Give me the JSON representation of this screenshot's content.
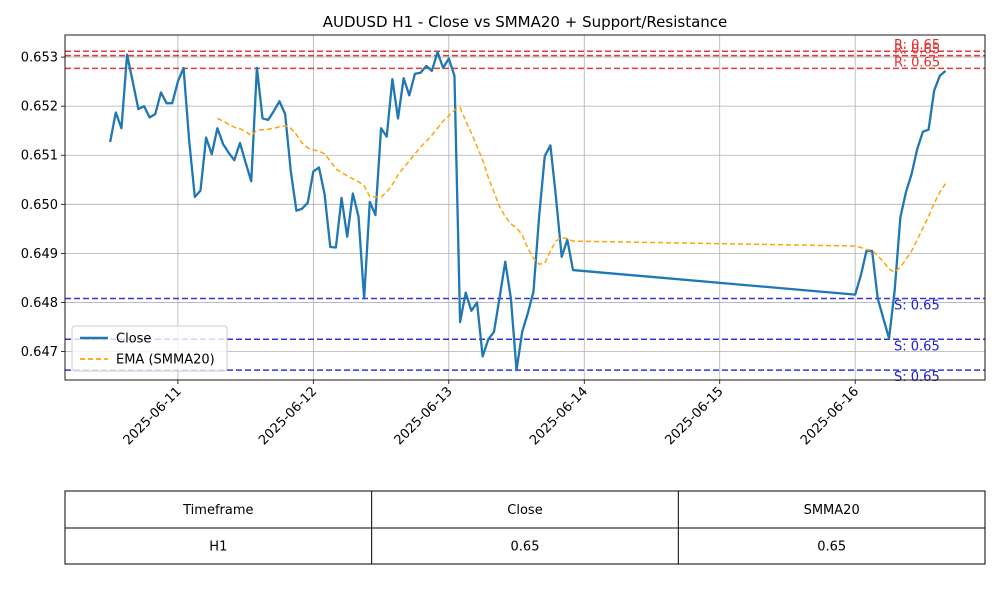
{
  "chart_data": {
    "type": "line",
    "title": "AUDUSD H1 - Close vs SMMA20 + Support/Resistance",
    "xlabel": "",
    "ylabel": "",
    "x_ticks": [
      "2025-06-11",
      "2025-06-12",
      "2025-06-13",
      "2025-06-14",
      "2025-06-15",
      "2025-06-16"
    ],
    "y_ticks": [
      "0.647",
      "0.648",
      "0.649",
      "0.650",
      "0.651",
      "0.652",
      "0.653"
    ],
    "xlim": [
      "2025-06-10T04:00",
      "2025-06-16T23:00"
    ],
    "ylim": [
      0.64642,
      0.65345
    ],
    "grid": true,
    "legend_position": "center-left",
    "colors": {
      "close": "#1f77b4",
      "smma": "#ffa500",
      "resistance": "#e03030",
      "support": "#2020d0"
    },
    "series": [
      {
        "name": "Close",
        "style": "solid",
        "points": [
          [
            "2025-06-10T12:00",
            0.65127
          ],
          [
            "2025-06-10T13:00",
            0.65187
          ],
          [
            "2025-06-10T14:00",
            0.65155
          ],
          [
            "2025-06-10T15:00",
            0.65305
          ],
          [
            "2025-06-10T16:00",
            0.6525
          ],
          [
            "2025-06-10T17:00",
            0.65194
          ],
          [
            "2025-06-10T18:00",
            0.652
          ],
          [
            "2025-06-10T19:00",
            0.65177
          ],
          [
            "2025-06-10T20:00",
            0.65184
          ],
          [
            "2025-06-10T21:00",
            0.65228
          ],
          [
            "2025-06-10T22:00",
            0.65206
          ],
          [
            "2025-06-10T23:00",
            0.65206
          ],
          [
            "2025-06-11T00:00",
            0.6525
          ],
          [
            "2025-06-11T01:00",
            0.65278
          ],
          [
            "2025-06-11T02:00",
            0.6513
          ],
          [
            "2025-06-11T03:00",
            0.65015
          ],
          [
            "2025-06-11T04:00",
            0.65028
          ],
          [
            "2025-06-11T05:00",
            0.65136
          ],
          [
            "2025-06-11T06:00",
            0.65102
          ],
          [
            "2025-06-11T07:00",
            0.65155
          ],
          [
            "2025-06-11T08:00",
            0.65123
          ],
          [
            "2025-06-11T09:00",
            0.65105
          ],
          [
            "2025-06-11T10:00",
            0.6509
          ],
          [
            "2025-06-11T11:00",
            0.65125
          ],
          [
            "2025-06-11T12:00",
            0.65085
          ],
          [
            "2025-06-11T13:00",
            0.65047
          ],
          [
            "2025-06-11T14:00",
            0.65278
          ],
          [
            "2025-06-11T15:00",
            0.65175
          ],
          [
            "2025-06-11T16:00",
            0.65172
          ],
          [
            "2025-06-11T17:00",
            0.6519
          ],
          [
            "2025-06-11T18:00",
            0.6521
          ],
          [
            "2025-06-11T19:00",
            0.65184
          ],
          [
            "2025-06-11T20:00",
            0.65068
          ],
          [
            "2025-06-11T21:00",
            0.64987
          ],
          [
            "2025-06-11T22:00",
            0.64991
          ],
          [
            "2025-06-11T23:00",
            0.65003
          ],
          [
            "2025-06-12T00:00",
            0.65067
          ],
          [
            "2025-06-12T01:00",
            0.65075
          ],
          [
            "2025-06-12T02:00",
            0.6502
          ],
          [
            "2025-06-12T03:00",
            0.64913
          ],
          [
            "2025-06-12T04:00",
            0.64912
          ],
          [
            "2025-06-12T05:00",
            0.65013
          ],
          [
            "2025-06-12T06:00",
            0.64934
          ],
          [
            "2025-06-12T07:00",
            0.65022
          ],
          [
            "2025-06-12T08:00",
            0.64975
          ],
          [
            "2025-06-12T09:00",
            0.64808
          ],
          [
            "2025-06-12T10:00",
            0.65005
          ],
          [
            "2025-06-12T11:00",
            0.64978
          ],
          [
            "2025-06-12T12:00",
            0.65155
          ],
          [
            "2025-06-12T13:00",
            0.65138
          ],
          [
            "2025-06-12T14:00",
            0.65255
          ],
          [
            "2025-06-12T15:00",
            0.65175
          ],
          [
            "2025-06-12T16:00",
            0.65257
          ],
          [
            "2025-06-12T17:00",
            0.65222
          ],
          [
            "2025-06-12T18:00",
            0.65266
          ],
          [
            "2025-06-12T19:00",
            0.65268
          ],
          [
            "2025-06-12T20:00",
            0.65282
          ],
          [
            "2025-06-12T21:00",
            0.65272
          ],
          [
            "2025-06-12T22:00",
            0.6531
          ],
          [
            "2025-06-12T23:00",
            0.65278
          ],
          [
            "2025-06-13T00:00",
            0.65297
          ],
          [
            "2025-06-13T01:00",
            0.65262
          ],
          [
            "2025-06-13T02:00",
            0.6476
          ],
          [
            "2025-06-13T03:00",
            0.6482
          ],
          [
            "2025-06-13T04:00",
            0.64783
          ],
          [
            "2025-06-13T05:00",
            0.648
          ],
          [
            "2025-06-13T06:00",
            0.6469
          ],
          [
            "2025-06-13T07:00",
            0.64725
          ],
          [
            "2025-06-13T08:00",
            0.6474
          ],
          [
            "2025-06-13T09:00",
            0.6481
          ],
          [
            "2025-06-13T10:00",
            0.64883
          ],
          [
            "2025-06-13T11:00",
            0.64808
          ],
          [
            "2025-06-13T12:00",
            0.64662
          ],
          [
            "2025-06-13T13:00",
            0.6474
          ],
          [
            "2025-06-13T14:00",
            0.64778
          ],
          [
            "2025-06-13T15:00",
            0.64822
          ],
          [
            "2025-06-13T16:00",
            0.64975
          ],
          [
            "2025-06-13T17:00",
            0.65098
          ],
          [
            "2025-06-13T18:00",
            0.6512
          ],
          [
            "2025-06-13T19:00",
            0.65013
          ],
          [
            "2025-06-13T20:00",
            0.64893
          ],
          [
            "2025-06-13T21:00",
            0.64928
          ],
          [
            "2025-06-13T22:00",
            0.64866
          ],
          [
            "2025-06-16T00:00",
            0.64816
          ],
          [
            "2025-06-16T01:00",
            0.64855
          ],
          [
            "2025-06-16T02:00",
            0.64905
          ],
          [
            "2025-06-16T03:00",
            0.64905
          ],
          [
            "2025-06-16T04:00",
            0.64808
          ],
          [
            "2025-06-16T05:00",
            0.64767
          ],
          [
            "2025-06-16T06:00",
            0.64727
          ],
          [
            "2025-06-16T07:00",
            0.64825
          ],
          [
            "2025-06-16T08:00",
            0.64973
          ],
          [
            "2025-06-16T09:00",
            0.65025
          ],
          [
            "2025-06-16T10:00",
            0.65062
          ],
          [
            "2025-06-16T11:00",
            0.65113
          ],
          [
            "2025-06-16T12:00",
            0.65148
          ],
          [
            "2025-06-16T13:00",
            0.65152
          ],
          [
            "2025-06-16T14:00",
            0.65232
          ],
          [
            "2025-06-16T15:00",
            0.65262
          ],
          [
            "2025-06-16T16:00",
            0.65272
          ]
        ]
      },
      {
        "name": "EMA (SMMA20)",
        "style": "dashed",
        "points": [
          [
            "2025-06-11T07:00",
            0.65175
          ],
          [
            "2025-06-11T08:00",
            0.6517
          ],
          [
            "2025-06-11T09:00",
            0.65163
          ],
          [
            "2025-06-11T10:00",
            0.65157
          ],
          [
            "2025-06-11T11:00",
            0.65154
          ],
          [
            "2025-06-11T12:00",
            0.65148
          ],
          [
            "2025-06-11T13:00",
            0.6514
          ],
          [
            "2025-06-11T14:00",
            0.65151
          ],
          [
            "2025-06-11T15:00",
            0.65152
          ],
          [
            "2025-06-11T16:00",
            0.65153
          ],
          [
            "2025-06-11T17:00",
            0.65155
          ],
          [
            "2025-06-11T18:00",
            0.65158
          ],
          [
            "2025-06-11T19:00",
            0.6516
          ],
          [
            "2025-06-11T20:00",
            0.65155
          ],
          [
            "2025-06-11T21:00",
            0.65142
          ],
          [
            "2025-06-11T22:00",
            0.65125
          ],
          [
            "2025-06-11T23:00",
            0.65115
          ],
          [
            "2025-06-12T00:00",
            0.65111
          ],
          [
            "2025-06-12T01:00",
            0.65108
          ],
          [
            "2025-06-12T02:00",
            0.65103
          ],
          [
            "2025-06-12T03:00",
            0.65088
          ],
          [
            "2025-06-12T04:00",
            0.65072
          ],
          [
            "2025-06-12T05:00",
            0.65065
          ],
          [
            "2025-06-12T06:00",
            0.65058
          ],
          [
            "2025-06-12T07:00",
            0.65052
          ],
          [
            "2025-06-12T08:00",
            0.65046
          ],
          [
            "2025-06-12T09:00",
            0.65038
          ],
          [
            "2025-06-12T10:00",
            0.65016
          ],
          [
            "2025-06-12T11:00",
            0.65015
          ],
          [
            "2025-06-12T12:00",
            0.65015
          ],
          [
            "2025-06-12T13:00",
            0.65025
          ],
          [
            "2025-06-12T14:00",
            0.6504
          ],
          [
            "2025-06-12T15:00",
            0.6506
          ],
          [
            "2025-06-12T16:00",
            0.65075
          ],
          [
            "2025-06-12T17:00",
            0.65088
          ],
          [
            "2025-06-12T18:00",
            0.65103
          ],
          [
            "2025-06-12T19:00",
            0.65117
          ],
          [
            "2025-06-12T20:00",
            0.65128
          ],
          [
            "2025-06-12T21:00",
            0.65141
          ],
          [
            "2025-06-12T22:00",
            0.65155
          ],
          [
            "2025-06-12T23:00",
            0.6517
          ],
          [
            "2025-06-13T00:00",
            0.6518
          ],
          [
            "2025-06-13T01:00",
            0.65192
          ],
          [
            "2025-06-13T02:00",
            0.65197
          ],
          [
            "2025-06-13T03:00",
            0.6517
          ],
          [
            "2025-06-13T04:00",
            0.65145
          ],
          [
            "2025-06-13T05:00",
            0.65118
          ],
          [
            "2025-06-13T06:00",
            0.6509
          ],
          [
            "2025-06-13T07:00",
            0.65055
          ],
          [
            "2025-06-13T08:00",
            0.65025
          ],
          [
            "2025-06-13T09:00",
            0.64995
          ],
          [
            "2025-06-13T10:00",
            0.64975
          ],
          [
            "2025-06-13T11:00",
            0.6496
          ],
          [
            "2025-06-13T12:00",
            0.64952
          ],
          [
            "2025-06-13T13:00",
            0.64938
          ],
          [
            "2025-06-13T14:00",
            0.6491
          ],
          [
            "2025-06-13T15:00",
            0.6489
          ],
          [
            "2025-06-13T16:00",
            0.64878
          ],
          [
            "2025-06-13T17:00",
            0.6488
          ],
          [
            "2025-06-13T18:00",
            0.64905
          ],
          [
            "2025-06-13T19:00",
            0.64925
          ],
          [
            "2025-06-13T20:00",
            0.64932
          ],
          [
            "2025-06-13T21:00",
            0.6493
          ],
          [
            "2025-06-13T22:00",
            0.64925
          ],
          [
            "2025-06-16T00:00",
            0.64915
          ],
          [
            "2025-06-16T01:00",
            0.64912
          ],
          [
            "2025-06-16T02:00",
            0.64908
          ],
          [
            "2025-06-16T03:00",
            0.64906
          ],
          [
            "2025-06-16T04:00",
            0.64895
          ],
          [
            "2025-06-16T05:00",
            0.64883
          ],
          [
            "2025-06-16T06:00",
            0.64868
          ],
          [
            "2025-06-16T07:00",
            0.64862
          ],
          [
            "2025-06-16T08:00",
            0.64872
          ],
          [
            "2025-06-16T09:00",
            0.64888
          ],
          [
            "2025-06-16T10:00",
            0.64905
          ],
          [
            "2025-06-16T11:00",
            0.64928
          ],
          [
            "2025-06-16T12:00",
            0.64952
          ],
          [
            "2025-06-16T13:00",
            0.64975
          ],
          [
            "2025-06-16T14:00",
            0.65002
          ],
          [
            "2025-06-16T15:00",
            0.65025
          ],
          [
            "2025-06-16T16:00",
            0.65042
          ]
        ]
      }
    ],
    "resistance_levels": [
      {
        "value": 0.65312,
        "label": "R: 0.65"
      },
      {
        "value": 0.65303,
        "label": "R: 0.65"
      },
      {
        "value": 0.65277,
        "label": "R: 0.65"
      }
    ],
    "support_levels": [
      {
        "value": 0.64808,
        "label": "S: 0.65"
      },
      {
        "value": 0.64725,
        "label": "S: 0.65"
      },
      {
        "value": 0.64662,
        "label": "S: 0.65"
      }
    ]
  },
  "table": {
    "headers": [
      "Timeframe",
      "Close",
      "SMMA20"
    ],
    "rows": [
      [
        "H1",
        "0.65",
        "0.65"
      ]
    ]
  }
}
